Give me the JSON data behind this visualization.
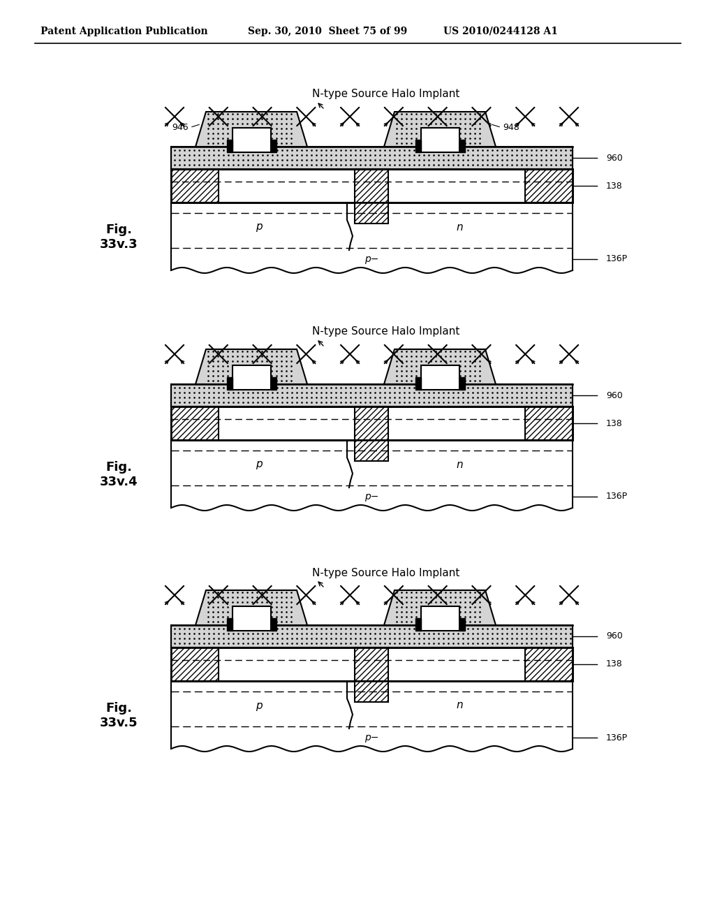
{
  "header_left": "Patent Application Publication",
  "header_center": "Sep. 30, 2010  Sheet 75 of 99",
  "header_right": "US 2010/0244128 A1",
  "panel_tops": [
    115,
    455,
    800
  ],
  "variants": [
    3,
    4,
    5
  ],
  "fig_labels": [
    "Fig.\n33v.3",
    "Fig.\n33v.4",
    "Fig.\n33v.5"
  ],
  "bg_color": "#ffffff"
}
